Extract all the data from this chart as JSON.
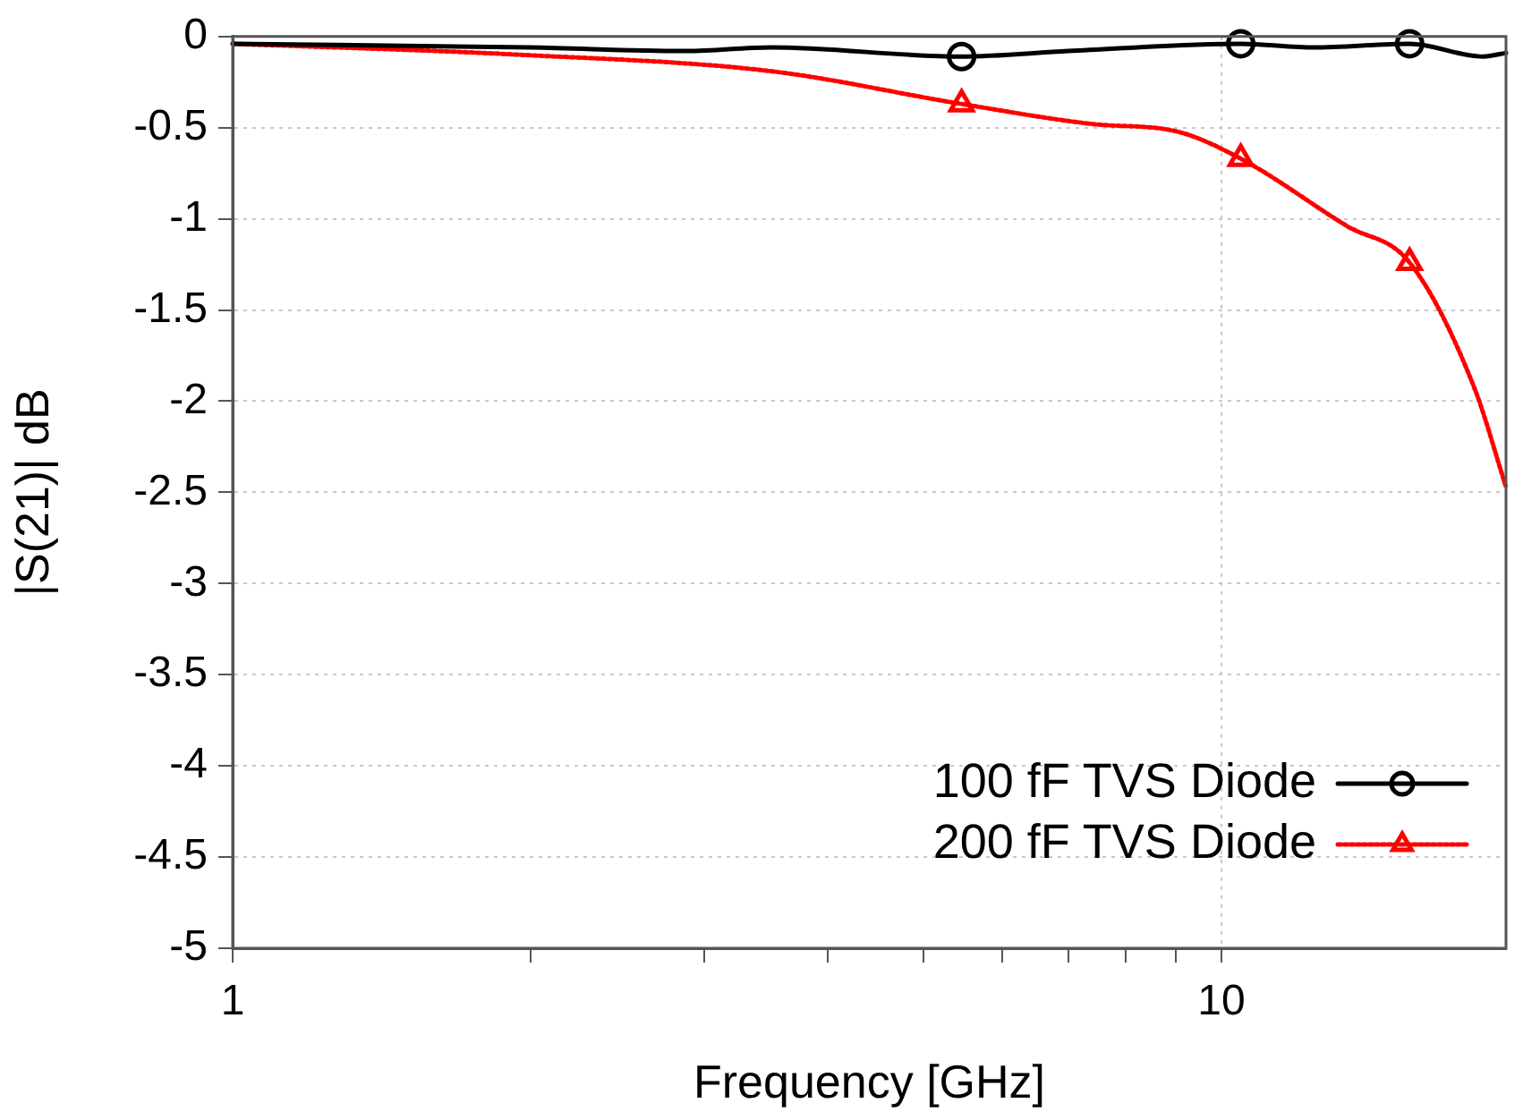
{
  "chart_data": {
    "type": "line",
    "xlabel": "Frequency [GHz]",
    "ylabel": "|S(21)| dB",
    "log": "x",
    "grid": true,
    "legend": "bottom right",
    "xlim": [
      1,
      19.4
    ],
    "ylim": [
      -5,
      0
    ],
    "xticks": [
      1,
      {
        "value": 2,
        "label": null
      },
      {
        "value": 3,
        "label": null
      },
      {
        "value": 4,
        "label": null
      },
      {
        "value": 5,
        "label": null
      },
      {
        "value": 6,
        "label": null
      },
      {
        "value": 7,
        "label": null
      },
      {
        "value": 8,
        "label": null
      },
      {
        "value": 9,
        "label": null
      },
      10
    ],
    "yticks": [
      0,
      -0.5,
      -1,
      -1.5,
      -2,
      -2.5,
      -3,
      -3.5,
      -4,
      -4.5,
      -5
    ],
    "series": [
      {
        "name": "100 fF TVS Diode",
        "color": "#000000",
        "marker": "none",
        "line_style": "solid",
        "x": [
          1,
          2.0,
          2.88,
          3.5,
          5.46,
          7.0,
          10.46,
          12.4,
          15.5,
          18.4,
          19.4
        ],
        "values": [
          -0.04,
          -0.06,
          -0.08,
          -0.06,
          -0.11,
          -0.08,
          -0.04,
          -0.06,
          -0.04,
          -0.11,
          -0.09
        ]
      },
      {
        "name": "200 fF TVS Diode",
        "color": "#ff0000",
        "marker": "none",
        "line_style": "dotted",
        "x": [
          1,
          1.95,
          3.5,
          5.46,
          7.41,
          9.0,
          10.46,
          13.4,
          15.5,
          18.0,
          19.4
        ],
        "values": [
          -0.04,
          -0.1,
          -0.19,
          -0.37,
          -0.48,
          -0.52,
          -0.67,
          -1.04,
          -1.24,
          -1.92,
          -2.47
        ]
      },
      {
        "color": "#000000",
        "type": "scatter",
        "marker": "circle",
        "x": [
          5.46,
          10.46,
          15.5
        ],
        "values": [
          -0.11,
          -0.04,
          -0.04
        ]
      },
      {
        "color": "#ff0000",
        "type": "scatter",
        "marker": "triangle",
        "x": [
          5.46,
          10.46,
          15.5
        ],
        "values": [
          -0.37,
          -0.67,
          -1.24
        ]
      }
    ]
  }
}
